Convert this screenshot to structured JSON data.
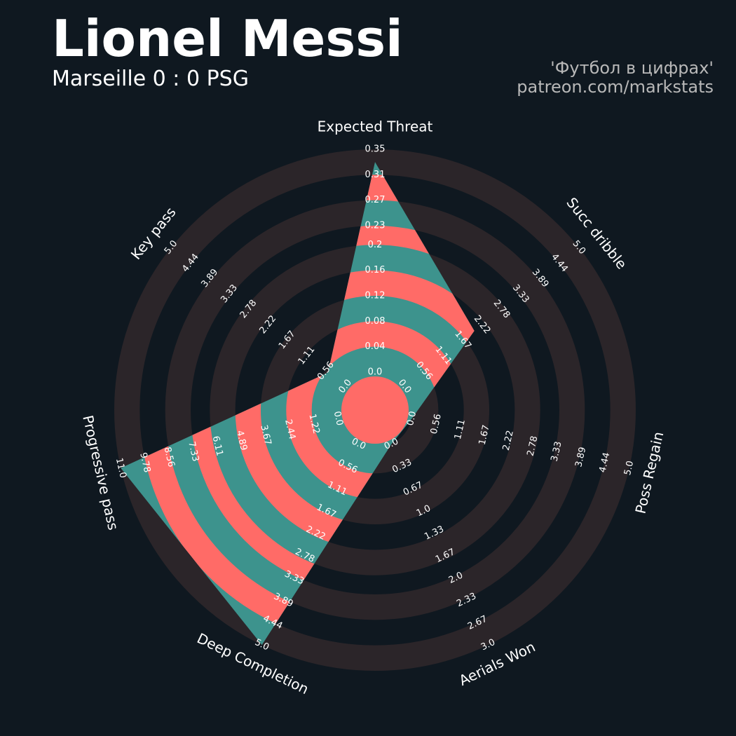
{
  "chart_data": {
    "type": "radar",
    "title": "Lionel Messi",
    "subtitle": "Marseille 0 : 0 PSG",
    "credits": [
      "'Футбол в цифрах'",
      "patreon.com/markstats"
    ],
    "categories": [
      "Expected Threat",
      "Succ dribble",
      "Poss Regain",
      "Aerials Won",
      "Deep Completion",
      "Progressive pass",
      "Key pass"
    ],
    "values": [
      0.33,
      2.0,
      0,
      0,
      5.0,
      11.0,
      0.5
    ],
    "band_colors": [
      "#3d938d",
      "#ff6b67"
    ],
    "ring_color": "#2b2529",
    "axes": [
      {
        "lim": [
          0,
          0.35
        ],
        "ticks": [
          {
            "value": 0,
            "label": "0.0"
          },
          0.04,
          0.08,
          0.12,
          0.16,
          0.2,
          0.23,
          0.27,
          0.31,
          0.35
        ]
      },
      {
        "lim": [
          0,
          5
        ],
        "ticks": [
          {
            "value": 0,
            "label": "0.0"
          },
          0.56,
          1.11,
          1.67,
          2.22,
          2.78,
          3.33,
          3.89,
          4.44,
          {
            "value": 5,
            "label": "5.0"
          }
        ]
      },
      {
        "lim": [
          0,
          5
        ],
        "ticks": [
          {
            "value": 0,
            "label": "0.0"
          },
          0.56,
          1.11,
          1.67,
          2.22,
          2.78,
          3.33,
          3.89,
          4.44,
          {
            "value": 5,
            "label": "5.0"
          }
        ]
      },
      {
        "lim": [
          0,
          3
        ],
        "ticks": [
          {
            "value": 0,
            "label": "0.0"
          },
          0.33,
          0.67,
          {
            "value": 1,
            "label": "1.0"
          },
          1.33,
          1.67,
          {
            "value": 2,
            "label": "2.0"
          },
          2.33,
          2.67,
          {
            "value": 3,
            "label": "3.0"
          }
        ]
      },
      {
        "lim": [
          0,
          5
        ],
        "ticks": [
          {
            "value": 0,
            "label": "0.0"
          },
          0.56,
          1.11,
          1.67,
          2.22,
          2.78,
          3.33,
          3.89,
          4.44,
          {
            "value": 5,
            "label": "5.0"
          }
        ]
      },
      {
        "lim": [
          0,
          11
        ],
        "ticks": [
          {
            "value": 0,
            "label": "0.0"
          },
          1.22,
          2.44,
          3.67,
          4.89,
          6.11,
          7.33,
          8.56,
          9.78,
          {
            "value": 11,
            "label": "11.0"
          }
        ]
      },
      {
        "lim": [
          0,
          5
        ],
        "ticks": [
          {
            "value": 0,
            "label": "0.0"
          },
          0.56,
          1.11,
          1.67,
          2.22,
          2.78,
          3.33,
          3.89,
          4.44,
          {
            "value": 5,
            "label": "5.0"
          }
        ]
      }
    ]
  }
}
